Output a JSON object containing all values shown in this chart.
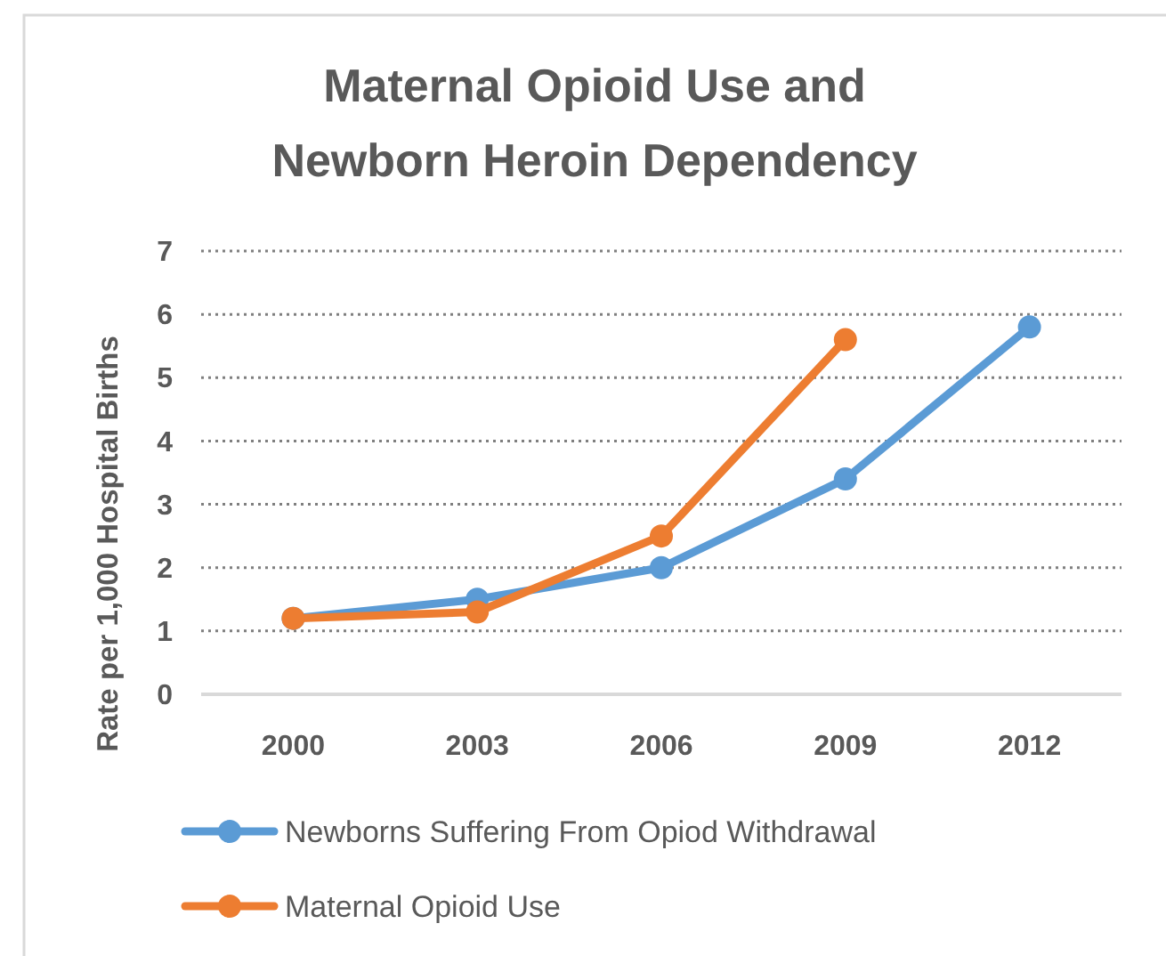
{
  "chart_data": {
    "type": "line",
    "title": "Maternal Opioid Use and Newborn Heroin Dependency",
    "ylabel": "Rate per 1,000 Hospital Births",
    "categories": [
      "2000",
      "2003",
      "2006",
      "2009",
      "2012"
    ],
    "series": [
      {
        "name": "Newborns Suffering From Opiod Withdrawal",
        "color": "#5b9bd5",
        "values": [
          1.2,
          1.5,
          2.0,
          3.4,
          5.8
        ]
      },
      {
        "name": "Maternal Opioid Use",
        "color": "#ed7d31",
        "values": [
          1.2,
          1.3,
          2.5,
          5.6,
          null
        ]
      }
    ],
    "ylim": [
      0,
      7
    ],
    "yticks": [
      0,
      1,
      2,
      3,
      4,
      5,
      6,
      7
    ],
    "grid": "y",
    "legend": "bottom",
    "marker": "circle",
    "line_style": "solid"
  }
}
